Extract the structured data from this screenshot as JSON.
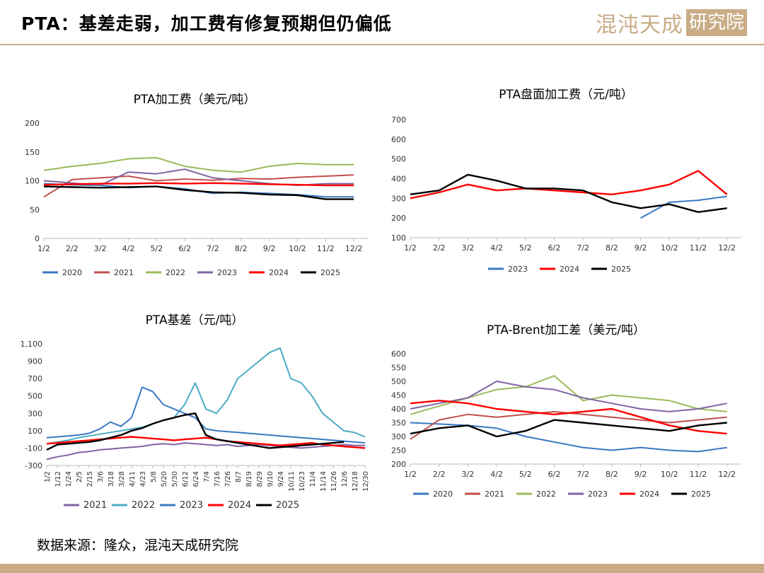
{
  "header": {
    "title": "PTA：基差走弱，加工费有修复预期但仍偏低",
    "logo_text": "混沌天成",
    "logo_box": "研究院"
  },
  "source": "数据来源：隆众，混沌天成研究院",
  "chart_data": [
    {
      "type": "line",
      "title": "PTA加工费（美元/吨）",
      "x": [
        "1/2",
        "2/2",
        "3/2",
        "4/2",
        "5/2",
        "6/2",
        "7/2",
        "8/2",
        "9/2",
        "10/2",
        "11/2",
        "12/2"
      ],
      "ylim": [
        0,
        200
      ],
      "yticks": [
        0,
        50,
        100,
        150,
        200
      ],
      "series": [
        {
          "name": "2020",
          "color": "#3a78c3",
          "values": [
            95,
            93,
            92,
            88,
            90,
            86,
            78,
            80,
            78,
            76,
            72,
            72
          ]
        },
        {
          "name": "2021",
          "color": "#c0504d",
          "values": [
            72,
            102,
            105,
            108,
            100,
            103,
            101,
            104,
            103,
            106,
            108,
            110
          ]
        },
        {
          "name": "2022",
          "color": "#9bbb59",
          "values": [
            118,
            125,
            130,
            138,
            140,
            125,
            118,
            115,
            125,
            130,
            128,
            128
          ]
        },
        {
          "name": "2023",
          "color": "#8064a2",
          "values": [
            100,
            96,
            92,
            115,
            112,
            120,
            105,
            100,
            95,
            92,
            95,
            95
          ]
        },
        {
          "name": "2024",
          "color": "#ff0000",
          "values": [
            93,
            94,
            95,
            95,
            96,
            95,
            96,
            95,
            94,
            93,
            92,
            92
          ]
        },
        {
          "name": "2025",
          "color": "#000000",
          "values": [
            90,
            89,
            88,
            89,
            90,
            84,
            80,
            79,
            76,
            75,
            68,
            68
          ]
        }
      ]
    },
    {
      "type": "line",
      "title": "PTA盘面加工费（元/吨）",
      "x": [
        "1/2",
        "2/2",
        "3/2",
        "4/2",
        "5/2",
        "6/2",
        "7/2",
        "8/2",
        "9/2",
        "10/2",
        "11/2",
        "12/2"
      ],
      "ylim": [
        100,
        700
      ],
      "yticks": [
        100,
        200,
        300,
        400,
        500,
        600,
        700
      ],
      "series": [
        {
          "name": "2023",
          "color": "#3a78c3",
          "values": [
            null,
            null,
            null,
            null,
            null,
            null,
            null,
            null,
            200,
            280,
            290,
            310
          ]
        },
        {
          "name": "2024",
          "color": "#ff0000",
          "values": [
            300,
            330,
            370,
            340,
            350,
            340,
            330,
            320,
            340,
            370,
            440,
            320
          ]
        },
        {
          "name": "2025",
          "color": "#000000",
          "values": [
            320,
            340,
            420,
            390,
            350,
            350,
            340,
            280,
            250,
            270,
            230,
            250
          ]
        }
      ]
    },
    {
      "type": "line",
      "title": "PTA基差（元/吨）",
      "x": [
        "1/2",
        "1/12",
        "1/24",
        "2/5",
        "2/15",
        "3/6",
        "3/18",
        "3/28",
        "4/11",
        "4/23",
        "5/8",
        "5/20",
        "5/30",
        "6/12",
        "6/24",
        "7/4",
        "7/16",
        "7/26",
        "8/7",
        "8/19",
        "8/29",
        "9/10",
        "9/24",
        "10/11",
        "10/23",
        "11/4",
        "11/14",
        "11/26",
        "12/6",
        "12/18",
        "12/30"
      ],
      "ylim": [
        -300,
        1100
      ],
      "yticks": [
        -300,
        -100,
        100,
        300,
        500,
        700,
        900,
        1100
      ],
      "ytick_labels": [
        "-300",
        "-100",
        "100",
        "300",
        "500",
        "700",
        "900",
        "1,100"
      ],
      "series": [
        {
          "name": "2021",
          "color": "#8064a2",
          "values": [
            -230,
            -200,
            -180,
            -150,
            -140,
            -120,
            -110,
            -100,
            -90,
            -80,
            -60,
            -50,
            -60,
            -40,
            -50,
            -60,
            -70,
            -60,
            -80,
            -70,
            -60,
            -70,
            -80,
            -90,
            -100,
            -90,
            -80,
            -70,
            -60,
            -70,
            -70
          ]
        },
        {
          "name": "2022",
          "color": "#4bacc6",
          "values": [
            -50,
            -30,
            -10,
            20,
            40,
            60,
            80,
            100,
            120,
            140,
            180,
            220,
            250,
            400,
            650,
            350,
            300,
            450,
            700,
            800,
            900,
            1000,
            1050,
            700,
            650,
            500,
            300,
            200,
            100,
            80,
            30
          ]
        },
        {
          "name": "2023",
          "color": "#3a78c3",
          "values": [
            20,
            30,
            40,
            50,
            70,
            120,
            200,
            150,
            250,
            600,
            550,
            400,
            350,
            300,
            250,
            120,
            100,
            90,
            80,
            70,
            60,
            50,
            40,
            30,
            20,
            10,
            0,
            -10,
            -20,
            -30,
            -40
          ]
        },
        {
          "name": "2024",
          "color": "#ff0000",
          "values": [
            -50,
            -40,
            -30,
            -20,
            -10,
            0,
            10,
            20,
            30,
            20,
            10,
            0,
            -10,
            0,
            10,
            20,
            0,
            -20,
            -30,
            -40,
            -50,
            -60,
            -70,
            -60,
            -50,
            -40,
            -60,
            -70,
            -80,
            -90,
            -100
          ]
        },
        {
          "name": "2025",
          "color": "#000000",
          "values": [
            -120,
            -60,
            -50,
            -40,
            -30,
            -10,
            20,
            50,
            100,
            130,
            180,
            220,
            250,
            280,
            300,
            50,
            0,
            -20,
            -40,
            -60,
            -80,
            -100,
            -90,
            -80,
            -70,
            -60,
            -50,
            -40,
            -30,
            null,
            null
          ]
        }
      ]
    },
    {
      "type": "line",
      "title": "PTA-Brent加工差（美元/吨）",
      "x": [
        "1/2",
        "2/2",
        "3/2",
        "4/2",
        "5/2",
        "6/2",
        "7/2",
        "8/2",
        "9/2",
        "10/2",
        "11/2",
        "12/2"
      ],
      "ylim": [
        200,
        600
      ],
      "yticks": [
        200,
        250,
        300,
        350,
        400,
        450,
        500,
        550,
        600
      ],
      "series": [
        {
          "name": "2020",
          "color": "#3a78c3",
          "values": [
            350,
            345,
            340,
            330,
            300,
            280,
            260,
            250,
            260,
            250,
            245,
            260
          ]
        },
        {
          "name": "2021",
          "color": "#c0504d",
          "values": [
            290,
            360,
            380,
            370,
            380,
            390,
            380,
            370,
            360,
            350,
            360,
            370
          ]
        },
        {
          "name": "2022",
          "color": "#9bbb59",
          "values": [
            380,
            410,
            440,
            470,
            480,
            520,
            430,
            450,
            440,
            430,
            400,
            390
          ]
        },
        {
          "name": "2023",
          "color": "#8064a2",
          "values": [
            400,
            420,
            440,
            500,
            480,
            470,
            440,
            420,
            400,
            390,
            400,
            420
          ]
        },
        {
          "name": "2024",
          "color": "#ff0000",
          "values": [
            420,
            430,
            420,
            400,
            390,
            380,
            390,
            400,
            370,
            340,
            320,
            310
          ]
        },
        {
          "name": "2025",
          "color": "#000000",
          "values": [
            310,
            330,
            340,
            300,
            320,
            360,
            350,
            340,
            330,
            320,
            340,
            350
          ]
        }
      ]
    }
  ]
}
